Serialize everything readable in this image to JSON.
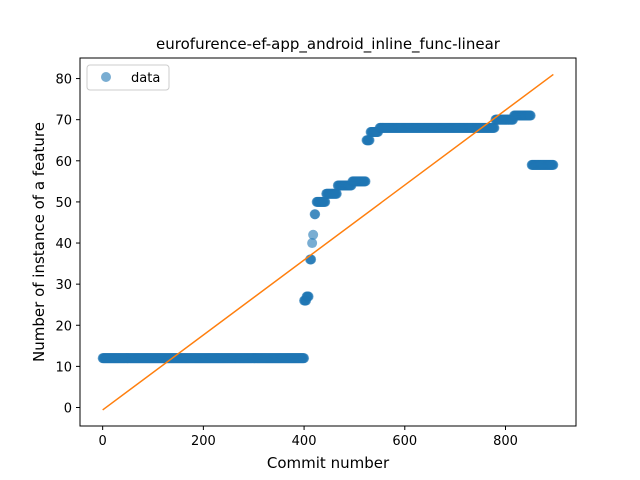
{
  "chart_data": {
    "type": "scatter",
    "title": "eurofurence-ef-app_android_inline_func-linear",
    "xlabel": "Commit number",
    "ylabel": "Number of instance of a feature",
    "xlim": [
      -45,
      940
    ],
    "ylim": [
      -4.5,
      85
    ],
    "xticks": [
      0,
      200,
      400,
      600,
      800
    ],
    "yticks": [
      0,
      10,
      20,
      30,
      40,
      50,
      60,
      70,
      80
    ],
    "grid": false,
    "legend": {
      "placement": "top-left",
      "entries": [
        "data"
      ]
    },
    "colors": {
      "scatter": "#1f77b4",
      "line": "#ff7f0e"
    },
    "series": [
      {
        "name": "data",
        "kind": "scatter",
        "segments": [
          {
            "x_from": 0,
            "x_to": 400,
            "y": 12
          },
          {
            "x_from": 400,
            "x_to": 404,
            "y": 26
          },
          {
            "x_from": 405,
            "x_to": 409,
            "y": 27
          },
          {
            "x_from": 412,
            "x_to": 414,
            "y": 36
          },
          {
            "x_from": 416,
            "x_to": 416,
            "y": 40
          },
          {
            "x_from": 418,
            "x_to": 418,
            "y": 42
          },
          {
            "x_from": 421,
            "x_to": 422,
            "y": 47
          },
          {
            "x_from": 425,
            "x_to": 442,
            "y": 50
          },
          {
            "x_from": 444,
            "x_to": 465,
            "y": 52
          },
          {
            "x_from": 467,
            "x_to": 494,
            "y": 54
          },
          {
            "x_from": 496,
            "x_to": 522,
            "y": 55
          },
          {
            "x_from": 524,
            "x_to": 530,
            "y": 65
          },
          {
            "x_from": 532,
            "x_to": 547,
            "y": 67
          },
          {
            "x_from": 550,
            "x_to": 778,
            "y": 68
          },
          {
            "x_from": 780,
            "x_to": 815,
            "y": 70
          },
          {
            "x_from": 817,
            "x_to": 850,
            "y": 71
          },
          {
            "x_from": 852,
            "x_to": 895,
            "y": 59
          }
        ]
      },
      {
        "name": "",
        "kind": "line",
        "points": [
          [
            0,
            -0.6
          ],
          [
            895,
            81
          ]
        ]
      }
    ]
  }
}
